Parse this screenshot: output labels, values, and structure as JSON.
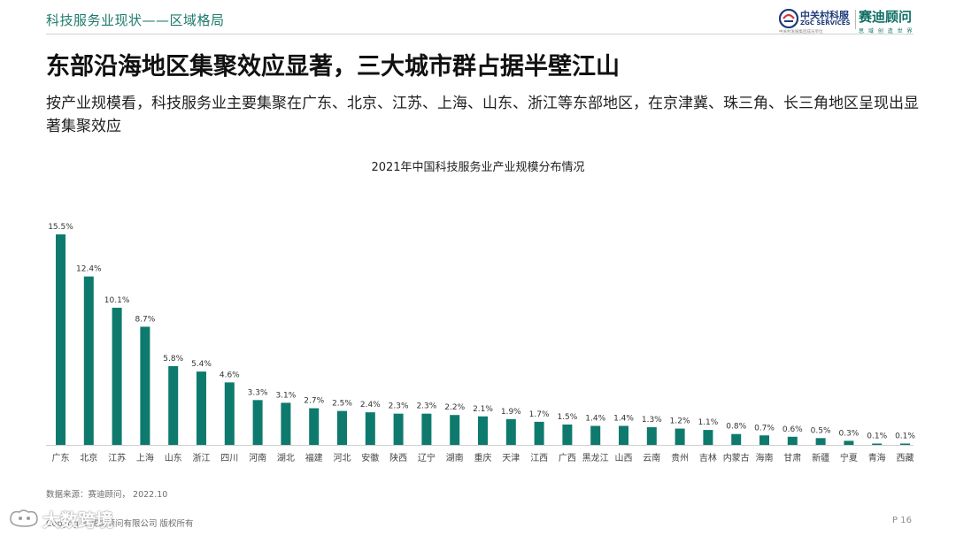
{
  "header": {
    "section_title": "科技服务业现状——区域格局",
    "logo_zgc_cn": "中关村科服",
    "logo_zgc_en": "ZGC SERVICES",
    "logo_zgc_tagline": "中关村发展集团成员单位",
    "logo_saidi_cn": "赛迪顾问",
    "logo_saidi_tagline": "思 域 创 造 世 界"
  },
  "main": {
    "title": "东部沿海地区集聚效应显著，三大城市群占据半壁江山",
    "subtitle": "按产业规模看，科技服务业主要集聚在广东、北京、江苏、上海、山东、浙江等东部地区，在京津冀、珠三角、长三角地区呈现出显著集聚效应"
  },
  "chart_data": {
    "type": "bar",
    "title": "2021年中国科技服务业产业规模分布情况",
    "xlabel": "",
    "ylabel": "",
    "categories": [
      "广东",
      "北京",
      "江苏",
      "上海",
      "山东",
      "浙江",
      "四川",
      "河南",
      "湖北",
      "福建",
      "河北",
      "安徽",
      "陕西",
      "辽宁",
      "湖南",
      "重庆",
      "天津",
      "江西",
      "广西",
      "黑龙江",
      "山西",
      "云南",
      "贵州",
      "吉林",
      "内蒙古",
      "海南",
      "甘肃",
      "新疆",
      "宁夏",
      "青海",
      "西藏"
    ],
    "values": [
      15.5,
      12.4,
      10.1,
      8.7,
      5.8,
      5.4,
      4.6,
      3.3,
      3.1,
      2.7,
      2.5,
      2.4,
      2.3,
      2.3,
      2.2,
      2.1,
      1.9,
      1.7,
      1.5,
      1.4,
      1.4,
      1.3,
      1.2,
      1.1,
      0.8,
      0.7,
      0.6,
      0.5,
      0.3,
      0.1,
      0.1
    ],
    "value_labels": [
      "15.5%",
      "12.4%",
      "10.1%",
      "8.7%",
      "5.8%",
      "5.4%",
      "4.6%",
      "3.3%",
      "3.1%",
      "2.7%",
      "2.5%",
      "2.4%",
      "2.3%",
      "2.3%",
      "2.2%",
      "2.1%",
      "1.9%",
      "1.7%",
      "1.5%",
      "1.4%",
      "1.4%",
      "1.3%",
      "1.2%",
      "1.1%",
      "0.8%",
      "0.7%",
      "0.6%",
      "0.5%",
      "0.3%",
      "0.1%",
      "0.1%"
    ],
    "ylim": [
      0,
      15.5
    ],
    "grid": false,
    "legend": "none",
    "bar_color": "#0e7a6e"
  },
  "footer": {
    "source": "数据来源：赛迪顾问， 2022.10",
    "copyright": "Copyright 赛迪顾问有限公司 版权所有",
    "page": "P 16",
    "watermark": "大数跨境"
  },
  "colors": {
    "accent": "#1d7a6e",
    "bar": "#0e7a6e",
    "axis": "#d0d0d0"
  }
}
